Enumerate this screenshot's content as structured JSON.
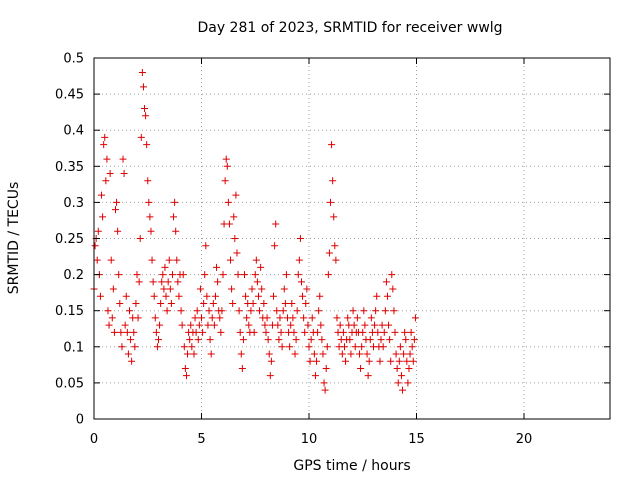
{
  "chart_data": {
    "type": "scatter",
    "title": "Day 281 of 2023, SRMTID for receiver wwlg",
    "xlabel": "GPS time / hours",
    "ylabel": "SRMTID / TECUs",
    "xlim": [
      0,
      24
    ],
    "ylim": [
      0,
      0.5
    ],
    "xticks": [
      0,
      5,
      10,
      15,
      20
    ],
    "xtick_labels": [
      "0",
      "5",
      "10",
      "15",
      "20"
    ],
    "yticks": [
      0,
      0.05,
      0.1,
      0.15,
      0.2,
      0.25,
      0.3,
      0.35,
      0.4,
      0.45,
      0.5
    ],
    "ytick_labels": [
      "0",
      "0.05",
      "0.1",
      "0.15",
      "0.2",
      "0.25",
      "0.3",
      "0.35",
      "0.4",
      "0.45",
      "0.5"
    ],
    "grid": true,
    "marker": "+",
    "series": [
      {
        "name": "SRMTID",
        "color": "#dd0000",
        "points": [
          [
            0.0,
            0.18
          ],
          [
            0.05,
            0.24
          ],
          [
            0.1,
            0.25
          ],
          [
            0.15,
            0.22
          ],
          [
            0.2,
            0.26
          ],
          [
            0.25,
            0.2
          ],
          [
            0.3,
            0.17
          ],
          [
            0.35,
            0.31
          ],
          [
            0.4,
            0.28
          ],
          [
            0.45,
            0.38
          ],
          [
            0.5,
            0.39
          ],
          [
            0.55,
            0.33
          ],
          [
            0.6,
            0.36
          ],
          [
            0.65,
            0.15
          ],
          [
            0.7,
            0.13
          ],
          [
            0.75,
            0.34
          ],
          [
            0.8,
            0.22
          ],
          [
            0.85,
            0.14
          ],
          [
            0.9,
            0.18
          ],
          [
            0.95,
            0.12
          ],
          [
            1.0,
            0.29
          ],
          [
            1.05,
            0.3
          ],
          [
            1.1,
            0.26
          ],
          [
            1.15,
            0.2
          ],
          [
            1.2,
            0.16
          ],
          [
            1.25,
            0.12
          ],
          [
            1.3,
            0.1
          ],
          [
            1.35,
            0.36
          ],
          [
            1.4,
            0.34
          ],
          [
            1.45,
            0.13
          ],
          [
            1.5,
            0.17
          ],
          [
            1.55,
            0.12
          ],
          [
            1.6,
            0.09
          ],
          [
            1.65,
            0.15
          ],
          [
            1.7,
            0.11
          ],
          [
            1.75,
            0.08
          ],
          [
            1.8,
            0.14
          ],
          [
            1.85,
            0.12
          ],
          [
            1.9,
            0.1
          ],
          [
            1.95,
            0.16
          ],
          [
            2.0,
            0.2
          ],
          [
            2.05,
            0.14
          ],
          [
            2.1,
            0.19
          ],
          [
            2.15,
            0.25
          ],
          [
            2.2,
            0.39
          ],
          [
            2.25,
            0.48
          ],
          [
            2.3,
            0.46
          ],
          [
            2.35,
            0.43
          ],
          [
            2.4,
            0.42
          ],
          [
            2.45,
            0.38
          ],
          [
            2.5,
            0.33
          ],
          [
            2.55,
            0.3
          ],
          [
            2.6,
            0.28
          ],
          [
            2.65,
            0.26
          ],
          [
            2.7,
            0.22
          ],
          [
            2.75,
            0.19
          ],
          [
            2.8,
            0.17
          ],
          [
            2.85,
            0.14
          ],
          [
            2.9,
            0.12
          ],
          [
            2.95,
            0.1
          ],
          [
            3.0,
            0.11
          ],
          [
            3.05,
            0.13
          ],
          [
            3.1,
            0.16
          ],
          [
            3.15,
            0.19
          ],
          [
            3.2,
            0.2
          ],
          [
            3.25,
            0.18
          ],
          [
            3.3,
            0.21
          ],
          [
            3.35,
            0.17
          ],
          [
            3.4,
            0.15
          ],
          [
            3.45,
            0.19
          ],
          [
            3.5,
            0.22
          ],
          [
            3.55,
            0.18
          ],
          [
            3.6,
            0.16
          ],
          [
            3.65,
            0.2
          ],
          [
            3.7,
            0.28
          ],
          [
            3.75,
            0.3
          ],
          [
            3.8,
            0.26
          ],
          [
            3.85,
            0.22
          ],
          [
            3.9,
            0.19
          ],
          [
            3.95,
            0.17
          ],
          [
            4.0,
            0.2
          ],
          [
            4.05,
            0.15
          ],
          [
            4.1,
            0.13
          ],
          [
            4.15,
            0.2
          ],
          [
            4.2,
            0.1
          ],
          [
            4.25,
            0.07
          ],
          [
            4.3,
            0.06
          ],
          [
            4.35,
            0.09
          ],
          [
            4.4,
            0.12
          ],
          [
            4.45,
            0.11
          ],
          [
            4.5,
            0.13
          ],
          [
            4.55,
            0.1
          ],
          [
            4.6,
            0.12
          ],
          [
            4.65,
            0.09
          ],
          [
            4.7,
            0.14
          ],
          [
            4.75,
            0.12
          ],
          [
            4.8,
            0.15
          ],
          [
            4.85,
            0.11
          ],
          [
            4.9,
            0.13
          ],
          [
            4.95,
            0.18
          ],
          [
            5.0,
            0.14
          ],
          [
            5.05,
            0.12
          ],
          [
            5.1,
            0.16
          ],
          [
            5.15,
            0.2
          ],
          [
            5.2,
            0.24
          ],
          [
            5.25,
            0.17
          ],
          [
            5.3,
            0.13
          ],
          [
            5.35,
            0.15
          ],
          [
            5.4,
            0.11
          ],
          [
            5.45,
            0.09
          ],
          [
            5.5,
            0.14
          ],
          [
            5.55,
            0.16
          ],
          [
            5.6,
            0.13
          ],
          [
            5.65,
            0.17
          ],
          [
            5.7,
            0.21
          ],
          [
            5.75,
            0.19
          ],
          [
            5.8,
            0.15
          ],
          [
            5.85,
            0.14
          ],
          [
            5.9,
            0.12
          ],
          [
            5.95,
            0.15
          ],
          [
            6.0,
            0.2
          ],
          [
            6.05,
            0.27
          ],
          [
            6.1,
            0.33
          ],
          [
            6.15,
            0.36
          ],
          [
            6.2,
            0.35
          ],
          [
            6.25,
            0.3
          ],
          [
            6.3,
            0.27
          ],
          [
            6.35,
            0.22
          ],
          [
            6.4,
            0.18
          ],
          [
            6.45,
            0.16
          ],
          [
            6.5,
            0.28
          ],
          [
            6.55,
            0.25
          ],
          [
            6.6,
            0.31
          ],
          [
            6.65,
            0.23
          ],
          [
            6.7,
            0.2
          ],
          [
            6.75,
            0.15
          ],
          [
            6.8,
            0.12
          ],
          [
            6.85,
            0.09
          ],
          [
            6.9,
            0.07
          ],
          [
            6.95,
            0.11
          ],
          [
            7.0,
            0.2
          ],
          [
            7.05,
            0.17
          ],
          [
            7.1,
            0.14
          ],
          [
            7.15,
            0.16
          ],
          [
            7.2,
            0.13
          ],
          [
            7.25,
            0.12
          ],
          [
            7.3,
            0.15
          ],
          [
            7.35,
            0.18
          ],
          [
            7.4,
            0.16
          ],
          [
            7.45,
            0.12
          ],
          [
            7.5,
            0.2
          ],
          [
            7.55,
            0.22
          ],
          [
            7.6,
            0.19
          ],
          [
            7.65,
            0.17
          ],
          [
            7.7,
            0.15
          ],
          [
            7.75,
            0.21
          ],
          [
            7.8,
            0.18
          ],
          [
            7.85,
            0.14
          ],
          [
            7.9,
            0.16
          ],
          [
            7.95,
            0.13
          ],
          [
            8.0,
            0.12
          ],
          [
            8.05,
            0.14
          ],
          [
            8.1,
            0.11
          ],
          [
            8.15,
            0.09
          ],
          [
            8.2,
            0.06
          ],
          [
            8.25,
            0.08
          ],
          [
            8.3,
            0.13
          ],
          [
            8.35,
            0.17
          ],
          [
            8.4,
            0.24
          ],
          [
            8.45,
            0.27
          ],
          [
            8.5,
            0.15
          ],
          [
            8.55,
            0.13
          ],
          [
            8.6,
            0.11
          ],
          [
            8.65,
            0.14
          ],
          [
            8.7,
            0.12
          ],
          [
            8.75,
            0.1
          ],
          [
            8.8,
            0.15
          ],
          [
            8.85,
            0.18
          ],
          [
            8.9,
            0.16
          ],
          [
            8.95,
            0.2
          ],
          [
            9.0,
            0.14
          ],
          [
            9.05,
            0.12
          ],
          [
            9.1,
            0.1
          ],
          [
            9.15,
            0.13
          ],
          [
            9.2,
            0.16
          ],
          [
            9.25,
            0.14
          ],
          [
            9.3,
            0.12
          ],
          [
            9.35,
            0.09
          ],
          [
            9.4,
            0.11
          ],
          [
            9.45,
            0.15
          ],
          [
            9.5,
            0.2
          ],
          [
            9.55,
            0.22
          ],
          [
            9.6,
            0.25
          ],
          [
            9.65,
            0.19
          ],
          [
            9.7,
            0.17
          ],
          [
            9.75,
            0.14
          ],
          [
            9.8,
            0.12
          ],
          [
            9.85,
            0.16
          ],
          [
            9.9,
            0.18
          ],
          [
            9.95,
            0.13
          ],
          [
            10.0,
            0.1
          ],
          [
            10.05,
            0.08
          ],
          [
            10.1,
            0.11
          ],
          [
            10.15,
            0.14
          ],
          [
            10.2,
            0.12
          ],
          [
            10.25,
            0.09
          ],
          [
            10.3,
            0.06
          ],
          [
            10.35,
            0.08
          ],
          [
            10.4,
            0.12
          ],
          [
            10.45,
            0.15
          ],
          [
            10.5,
            0.17
          ],
          [
            10.55,
            0.13
          ],
          [
            10.6,
            0.11
          ],
          [
            10.65,
            0.09
          ],
          [
            10.7,
            0.05
          ],
          [
            10.75,
            0.04
          ],
          [
            10.8,
            0.07
          ],
          [
            10.85,
            0.1
          ],
          [
            10.9,
            0.2
          ],
          [
            10.95,
            0.23
          ],
          [
            11.0,
            0.3
          ],
          [
            11.05,
            0.38
          ],
          [
            11.1,
            0.33
          ],
          [
            11.15,
            0.28
          ],
          [
            11.2,
            0.24
          ],
          [
            11.25,
            0.22
          ],
          [
            11.3,
            0.14
          ],
          [
            11.35,
            0.12
          ],
          [
            11.4,
            0.1
          ],
          [
            11.45,
            0.13
          ],
          [
            11.5,
            0.11
          ],
          [
            11.55,
            0.09
          ],
          [
            11.6,
            0.12
          ],
          [
            11.65,
            0.1
          ],
          [
            11.7,
            0.08
          ],
          [
            11.75,
            0.11
          ],
          [
            11.8,
            0.14
          ],
          [
            11.85,
            0.13
          ],
          [
            11.9,
            0.11
          ],
          [
            11.95,
            0.09
          ],
          [
            12.0,
            0.12
          ],
          [
            12.05,
            0.15
          ],
          [
            12.1,
            0.13
          ],
          [
            12.15,
            0.1
          ],
          [
            12.2,
            0.12
          ],
          [
            12.25,
            0.14
          ],
          [
            12.3,
            0.12
          ],
          [
            12.35,
            0.09
          ],
          [
            12.4,
            0.07
          ],
          [
            12.45,
            0.1
          ],
          [
            12.5,
            0.12
          ],
          [
            12.55,
            0.15
          ],
          [
            12.6,
            0.13
          ],
          [
            12.65,
            0.11
          ],
          [
            12.7,
            0.09
          ],
          [
            12.75,
            0.06
          ],
          [
            12.8,
            0.08
          ],
          [
            12.85,
            0.11
          ],
          [
            12.9,
            0.14
          ],
          [
            12.95,
            0.12
          ],
          [
            13.0,
            0.1
          ],
          [
            13.05,
            0.13
          ],
          [
            13.1,
            0.15
          ],
          [
            13.15,
            0.17
          ],
          [
            13.2,
            0.12
          ],
          [
            13.25,
            0.1
          ],
          [
            13.3,
            0.08
          ],
          [
            13.35,
            0.11
          ],
          [
            13.4,
            0.13
          ],
          [
            13.45,
            0.1
          ],
          [
            13.5,
            0.12
          ],
          [
            13.55,
            0.15
          ],
          [
            13.6,
            0.19
          ],
          [
            13.65,
            0.17
          ],
          [
            13.7,
            0.13
          ],
          [
            13.75,
            0.11
          ],
          [
            13.8,
            0.08
          ],
          [
            13.85,
            0.2
          ],
          [
            13.9,
            0.18
          ],
          [
            13.95,
            0.15
          ],
          [
            14.0,
            0.12
          ],
          [
            14.05,
            0.09
          ],
          [
            14.1,
            0.07
          ],
          [
            14.15,
            0.05
          ],
          [
            14.2,
            0.08
          ],
          [
            14.25,
            0.1
          ],
          [
            14.3,
            0.06
          ],
          [
            14.35,
            0.04
          ],
          [
            14.4,
            0.09
          ],
          [
            14.45,
            0.12
          ],
          [
            14.5,
            0.11
          ],
          [
            14.55,
            0.08
          ],
          [
            14.6,
            0.05
          ],
          [
            14.65,
            0.07
          ],
          [
            14.7,
            0.09
          ],
          [
            14.75,
            0.12
          ],
          [
            14.8,
            0.1
          ],
          [
            14.85,
            0.08
          ],
          [
            14.9,
            0.11
          ],
          [
            14.95,
            0.14
          ]
        ]
      }
    ]
  }
}
